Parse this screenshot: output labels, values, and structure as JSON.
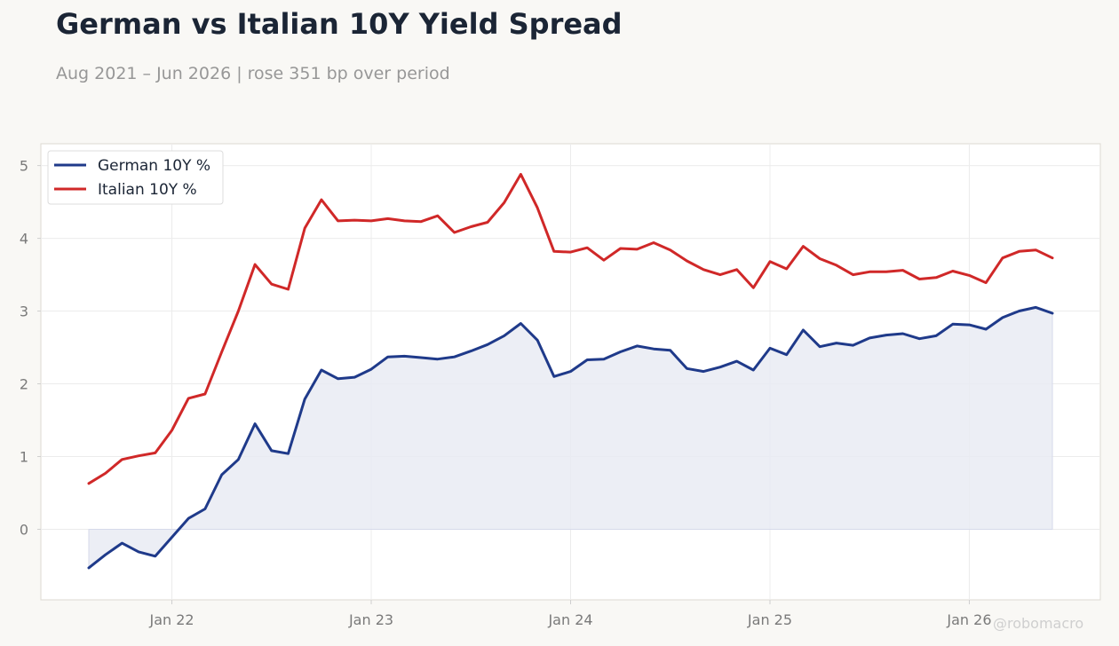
{
  "title": "German vs Italian 10Y Yield Spread",
  "subtitle": "Aug 2021 – Jun 2026 | rose 351 bp over period",
  "watermark": "@robomacro",
  "colors": {
    "background": "#f9f8f5",
    "plot_bg": "#ffffff",
    "german": "#1f3a8a",
    "italian": "#d02828",
    "fill": "#e9ebf3",
    "grid": "#ececec",
    "axis_text": "#7a7a7a"
  },
  "chart_data": {
    "type": "line",
    "x_start": "2021-08",
    "x_end": "2026-06",
    "x_frequency": "monthly",
    "xticks": [
      "Jan 22",
      "Jan 23",
      "Jan 24",
      "Jan 25",
      "Jan 26"
    ],
    "yticks": [
      0,
      1,
      2,
      3,
      4,
      5
    ],
    "ylim": [
      -0.97,
      5.3
    ],
    "grid": true,
    "legend": "top-left",
    "fill_between": "German 10Y % and 0",
    "series": [
      {
        "name": "German 10Y %",
        "values": [
          -0.53,
          -0.35,
          -0.19,
          -0.31,
          -0.37,
          -0.11,
          0.15,
          0.28,
          0.75,
          0.96,
          1.45,
          1.08,
          1.04,
          1.79,
          2.19,
          2.07,
          2.09,
          2.2,
          2.37,
          2.38,
          2.36,
          2.34,
          2.37,
          2.45,
          2.54,
          2.66,
          2.83,
          2.6,
          2.1,
          2.17,
          2.33,
          2.34,
          2.44,
          2.52,
          2.48,
          2.46,
          2.21,
          2.17,
          2.23,
          2.31,
          2.19,
          2.49,
          2.4,
          2.74,
          2.51,
          2.56,
          2.53,
          2.63,
          2.67,
          2.69,
          2.62,
          2.66,
          2.82,
          2.81,
          2.75,
          2.91,
          3.0,
          3.05,
          2.97
        ]
      },
      {
        "name": "Italian 10Y %",
        "values": [
          0.63,
          0.77,
          0.96,
          1.01,
          1.05,
          1.36,
          1.8,
          1.86,
          2.44,
          3.0,
          3.64,
          3.37,
          3.3,
          4.14,
          4.53,
          4.24,
          4.25,
          4.24,
          4.27,
          4.24,
          4.23,
          4.31,
          4.08,
          4.16,
          4.22,
          4.49,
          4.88,
          4.42,
          3.82,
          3.81,
          3.87,
          3.7,
          3.86,
          3.85,
          3.94,
          3.84,
          3.69,
          3.57,
          3.5,
          3.57,
          3.32,
          3.68,
          3.58,
          3.89,
          3.72,
          3.63,
          3.5,
          3.54,
          3.54,
          3.56,
          3.44,
          3.46,
          3.55,
          3.49,
          3.39,
          3.73,
          3.82,
          3.84,
          3.73
        ]
      }
    ]
  }
}
